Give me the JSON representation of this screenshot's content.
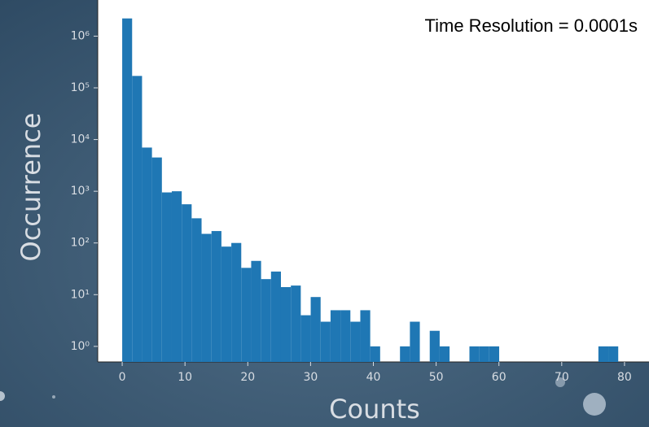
{
  "chart_data": {
    "type": "histogram",
    "title": null,
    "annotation": "Time Resolution = 0.0001s",
    "xlabel": "Counts",
    "ylabel": "Occurrence",
    "bins": [
      0,
      1.58,
      3.16,
      4.74,
      6.32,
      7.9,
      9.48,
      11.06,
      12.64,
      14.22,
      15.8,
      17.38,
      18.96,
      20.54,
      22.12,
      23.7,
      25.28,
      26.86,
      28.44,
      30.02,
      31.6,
      33.18,
      34.76,
      36.34,
      37.92,
      39.5,
      41.08,
      42.66,
      44.24,
      45.82,
      47.4,
      48.98,
      50.56,
      52.14,
      53.72,
      55.3,
      56.88,
      58.46,
      60.04,
      61.62,
      63.2,
      64.78,
      66.36,
      67.94,
      69.52,
      71.1,
      72.68,
      74.26,
      75.84,
      77.42,
      79
    ],
    "counts": [
      2200000,
      170000,
      7000,
      4500,
      950,
      1000,
      560,
      300,
      150,
      170,
      85,
      100,
      33,
      45,
      20,
      28,
      14,
      15,
      4,
      9,
      3,
      5,
      5,
      3,
      5,
      1,
      0,
      0,
      1,
      3,
      0,
      2,
      1,
      0,
      0,
      1,
      1,
      1,
      0,
      0,
      0,
      0,
      0,
      0,
      0,
      0,
      0,
      0,
      1,
      1
    ],
    "color": "#1f77b4",
    "xlim": [
      -3.9,
      83.9
    ],
    "xticks": [
      0,
      10,
      20,
      30,
      40,
      50,
      60,
      70,
      80
    ],
    "ylim": [
      0.5,
      5000000
    ],
    "yscale": "log",
    "yticks": [
      {
        "value": 1,
        "label": "10⁰"
      },
      {
        "value": 10,
        "label": "10¹"
      },
      {
        "value": 100,
        "label": "10²"
      },
      {
        "value": 1000,
        "label": "10³"
      },
      {
        "value": 10000,
        "label": "10⁴"
      },
      {
        "value": 100000,
        "label": "10⁵"
      },
      {
        "value": 1000000,
        "label": "10⁶"
      }
    ]
  }
}
